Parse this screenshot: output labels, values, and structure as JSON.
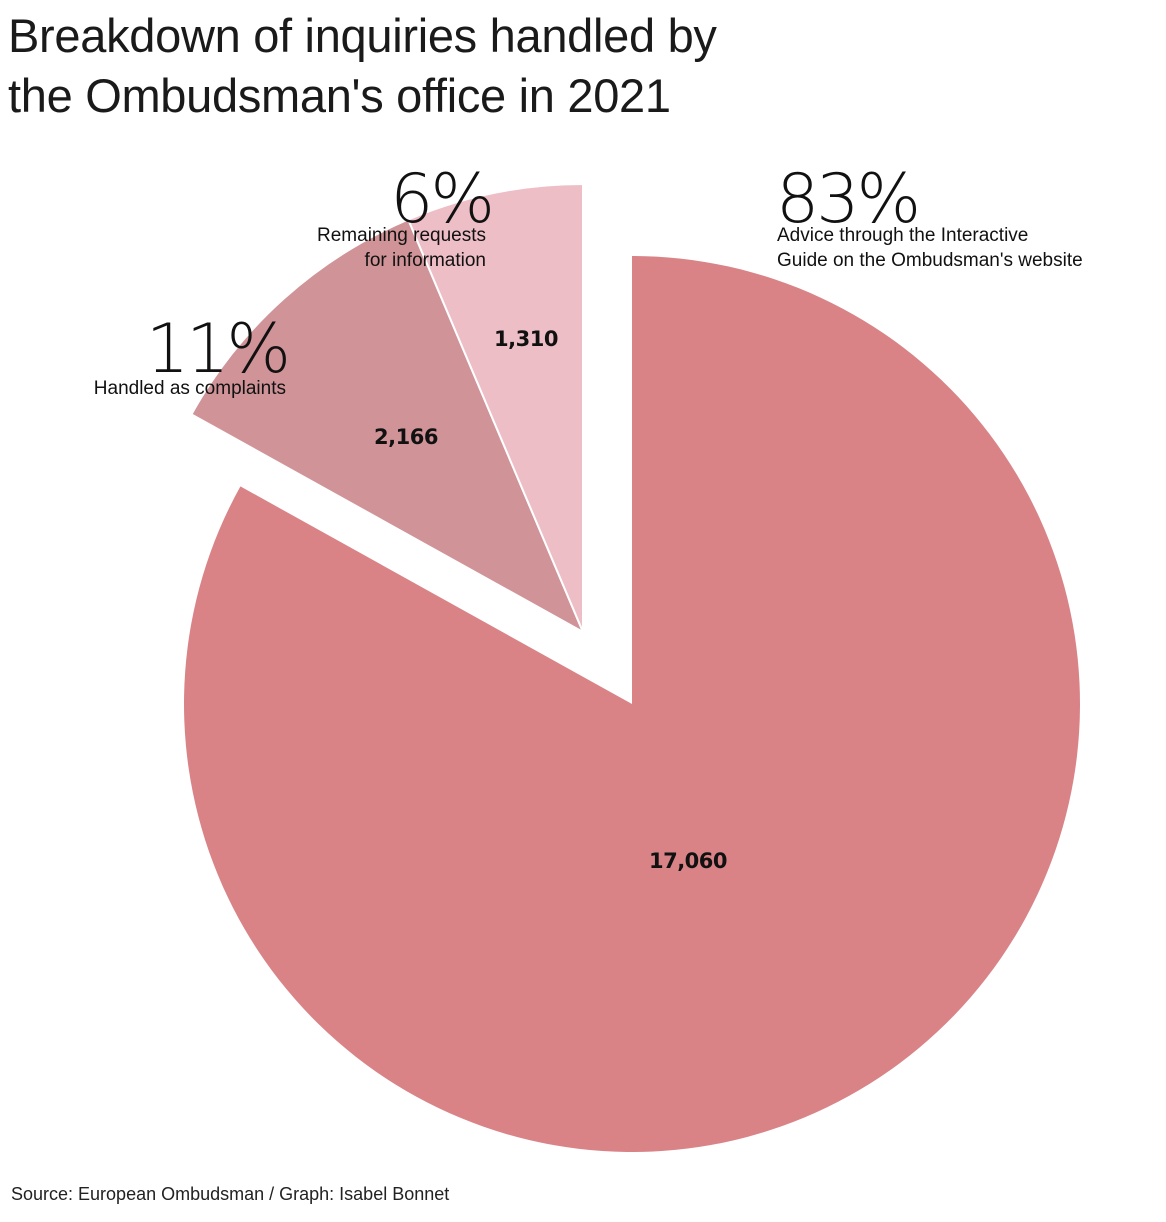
{
  "title_lines": [
    "Breakdown of inquiries handled by",
    "the Ombudsman's office in 2021"
  ],
  "source": "Source: European Ombudsman / Graph: Isabel Bonnet",
  "chart_data": {
    "type": "pie",
    "title": "Breakdown of inquiries handled by the Ombudsman's office in 2021",
    "slices": [
      {
        "value": 17060,
        "value_label": "17,060",
        "percent": 83,
        "percent_label": "83%",
        "label_lines": [
          "Advice through the Interactive",
          "Guide on the Ombudsman's website"
        ],
        "color": "#d98387"
      },
      {
        "value": 2166,
        "value_label": "2,166",
        "percent": 11,
        "percent_label": "11%",
        "label_lines": [
          "Handled as complaints"
        ],
        "color": "#d09498"
      },
      {
        "value": 1310,
        "value_label": "1,310",
        "percent": 6,
        "percent_label": "6%",
        "label_lines": [
          "Remaining requests",
          "for information"
        ],
        "color": "#eebec7"
      }
    ]
  }
}
